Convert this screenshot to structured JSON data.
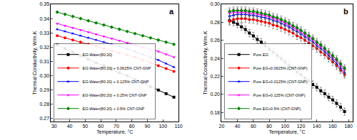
{
  "chart_data": [
    {
      "type": "line",
      "title": "a",
      "x_label": "Temperature, °C",
      "y_label": "Thermal Conductivity, W/m.K",
      "x": [
        32,
        37,
        42,
        47,
        52,
        57,
        62,
        67,
        72,
        77,
        82,
        87,
        92,
        97,
        102,
        107
      ],
      "xlim": [
        28,
        110
      ],
      "xticks": [
        30,
        40,
        50,
        60,
        70,
        80,
        90,
        100,
        110
      ],
      "ylim": [
        0.268,
        0.35
      ],
      "yticks": [
        0.27,
        0.28,
        0.29,
        {
          "value": 0.3,
          "label": "0.30"
        },
        0.31,
        0.32,
        0.33,
        0.34,
        0.35
      ],
      "grid": false,
      "legend": "lower left",
      "series": [
        {
          "name": "EG-Water(80:20)",
          "color": "#000000",
          "marker": "square",
          "values": [
            0.3215,
            0.319,
            0.3165,
            0.314,
            0.3115,
            0.309,
            0.307,
            0.3045,
            0.302,
            0.3,
            0.2975,
            0.295,
            0.2925,
            0.29,
            0.2875,
            0.285
          ]
        },
        {
          "name": "EG-Water(80:20) + 0.0625% CNT-GNP",
          "color": "#ff0000",
          "marker": "circle",
          "values": [
            0.328,
            0.3265,
            0.325,
            0.3235,
            0.322,
            0.3205,
            0.319,
            0.3175,
            0.316,
            0.3145,
            0.313,
            0.311,
            0.309,
            0.307,
            0.305,
            0.303
          ]
        },
        {
          "name": "EG-Water(80:20) + 0.125% CNT-GNP",
          "color": "#0000ff",
          "marker": "triangle-up",
          "values": [
            0.3325,
            0.331,
            0.3295,
            0.328,
            0.3265,
            0.325,
            0.3235,
            0.322,
            0.3205,
            0.319,
            0.317,
            0.315,
            0.313,
            0.311,
            0.3085,
            0.306
          ]
        },
        {
          "name": "EG-Water(80:20) + 0.25% CNT-GNP",
          "color": "#ff00ff",
          "marker": "triangle-down",
          "values": [
            0.3365,
            0.335,
            0.3335,
            0.332,
            0.3305,
            0.329,
            0.3275,
            0.326,
            0.3245,
            0.323,
            0.3215,
            0.32,
            0.3185,
            0.317,
            0.315,
            0.313
          ]
        },
        {
          "name": "EG-Water(80:20) + 0.5% CNT-GNP",
          "color": "#008000",
          "marker": "diamond",
          "values": [
            0.3445,
            0.343,
            0.3415,
            0.34,
            0.3385,
            0.337,
            0.3355,
            0.334,
            0.3325,
            0.331,
            0.3295,
            0.328,
            0.3265,
            0.325,
            0.3235,
            0.322
          ]
        }
      ]
    },
    {
      "type": "line",
      "title": "b",
      "x_label": "Temperature, °C",
      "y_label": "Thermal Conductivity, W/m.K",
      "x": [
        30,
        35,
        40,
        45,
        50,
        55,
        60,
        65,
        70,
        75,
        80,
        85,
        90,
        95,
        100,
        105,
        110,
        115,
        120,
        125,
        130,
        135,
        140,
        145,
        150,
        155,
        160,
        165,
        170,
        175
      ],
      "xlim": [
        20,
        185
      ],
      "xticks": [
        20,
        40,
        60,
        80,
        100,
        120,
        140,
        160,
        180
      ],
      "ylim": [
        0.17,
        0.3
      ],
      "yticks": [
        0.18,
        {
          "value": 0.2,
          "label": "0.20"
        },
        0.22,
        0.24,
        0.26,
        0.28,
        {
          "value": 0.3,
          "label": "0.30"
        }
      ],
      "grid": false,
      "legend": "lower left",
      "series": [
        {
          "name": "Pure EG",
          "color": "#000000",
          "marker": "square",
          "error": 0.004,
          "values": [
            0.282,
            0.28,
            0.278,
            0.275,
            0.272,
            0.268,
            0.265,
            0.261,
            0.258,
            0.254,
            0.25,
            0.247,
            0.243,
            0.24,
            0.236,
            0.232,
            0.229,
            0.225,
            0.222,
            0.218,
            0.215,
            0.211,
            0.208,
            0.204,
            0.201,
            0.197,
            0.194,
            0.19,
            0.186,
            0.181
          ]
        },
        {
          "name": "Pure EG+0.0625% (CNT-GNP)",
          "color": "#ff0000",
          "marker": "circle",
          "error": 0.004,
          "values": [
            0.281,
            0.283,
            0.284,
            0.284,
            0.284,
            0.283,
            0.283,
            0.282,
            0.281,
            0.28,
            0.279,
            0.277,
            0.276,
            0.274,
            0.272,
            0.27,
            0.268,
            0.265,
            0.263,
            0.26,
            0.257,
            0.254,
            0.251,
            0.247,
            0.244,
            0.24,
            0.236,
            0.232,
            0.227,
            0.222
          ]
        },
        {
          "name": "Pure EG+0.0125% (CNT-GNP)",
          "color": "#0000ff",
          "marker": "triangle-up",
          "error": 0.004,
          "values": [
            0.287,
            0.288,
            0.289,
            0.289,
            0.289,
            0.288,
            0.288,
            0.287,
            0.286,
            0.285,
            0.284,
            0.282,
            0.281,
            0.279,
            0.277,
            0.275,
            0.272,
            0.27,
            0.267,
            0.264,
            0.261,
            0.258,
            0.254,
            0.251,
            0.247,
            0.243,
            0.239,
            0.234,
            0.229,
            0.224
          ]
        },
        {
          "name": "Pure EG+0.125% (CNT-GNP)",
          "color": "#ff00ff",
          "marker": "triangle-down",
          "error": 0.004,
          "values": [
            0.29,
            0.291,
            0.291,
            0.291,
            0.291,
            0.29,
            0.29,
            0.289,
            0.288,
            0.287,
            0.286,
            0.284,
            0.283,
            0.281,
            0.279,
            0.277,
            0.274,
            0.272,
            0.269,
            0.266,
            0.263,
            0.26,
            0.256,
            0.253,
            0.249,
            0.245,
            0.241,
            0.237,
            0.232,
            0.227
          ]
        },
        {
          "name": "Pure EG+0.5% (CNT-GNP)",
          "color": "#008000",
          "marker": "diamond",
          "error": 0.004,
          "values": [
            0.292,
            0.293,
            0.293,
            0.293,
            0.293,
            0.292,
            0.292,
            0.291,
            0.29,
            0.289,
            0.288,
            0.286,
            0.285,
            0.283,
            0.281,
            0.279,
            0.276,
            0.274,
            0.271,
            0.268,
            0.265,
            0.262,
            0.258,
            0.255,
            0.251,
            0.247,
            0.243,
            0.239,
            0.234,
            0.229
          ]
        }
      ]
    }
  ]
}
